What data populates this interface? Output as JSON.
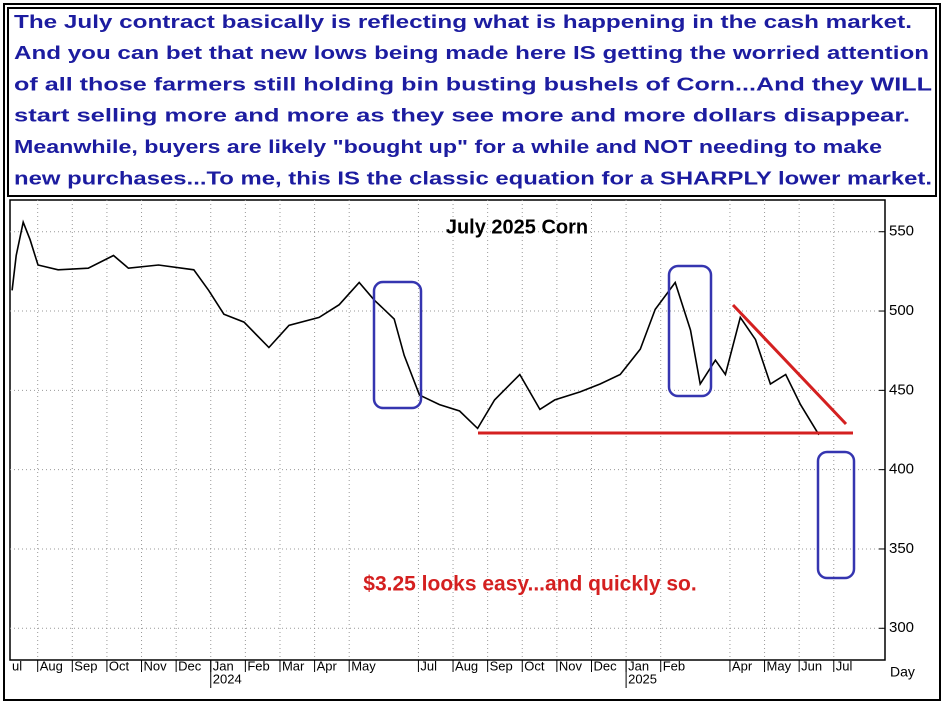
{
  "header": {
    "lines": [
      "The July contract basically is reflecting what is happening in the cash market.",
      "And you can bet that new lows being made here IS getting the worried attention",
      "of all those farmers still holding bin busting bushels of Corn...And they WILL",
      "start selling more and more as they see more and more dollars disappear.",
      "Meanwhile, buyers are likely \"bought up\" for a while and NOT needing to make",
      "new purchases...To me, this IS the classic equation for a SHARPLY lower market."
    ]
  },
  "chart_data": {
    "type": "line",
    "title": "July 2025 Corn",
    "annotation": "$3.25 looks easy...and quickly so.",
    "x_unit_label": "Day",
    "color": "#000000",
    "grid": true,
    "x": [
      0.26,
      0.38,
      0.58,
      0.78,
      1.01,
      1.59,
      2.46,
      3.19,
      3.62,
      4.49,
      5.51,
      5.94,
      6.38,
      6.96,
      7.68,
      8.26,
      9.13,
      9.71,
      10.29,
      10.72,
      11.3,
      11.59,
      12.03,
      12.61,
      13.19,
      13.71,
      14.2,
      14.93,
      15.51,
      15.94,
      16.67,
      17.25,
      17.83,
      18.41,
      18.84,
      19.42,
      19.86,
      20.14,
      20.58,
      20.87,
      21.3,
      21.74,
      22.17,
      22.61,
      23.04,
      23.57
    ],
    "values": [
      513,
      535,
      556,
      545,
      529,
      526,
      527,
      535,
      527,
      529,
      526,
      513,
      498,
      493,
      477,
      491,
      496,
      504,
      518,
      507,
      495,
      472,
      447,
      441,
      437,
      426,
      444,
      460,
      438,
      444,
      449,
      454,
      460,
      476,
      501,
      518,
      488,
      454,
      469,
      460,
      496,
      482,
      454,
      460,
      441,
      422
    ],
    "xlim": [
      0.2,
      25.48
    ],
    "xticks": [
      {
        "value": 0,
        "label": "ul"
      },
      {
        "value": 1,
        "label": "Aug"
      },
      {
        "value": 2,
        "label": "Sep"
      },
      {
        "value": 3,
        "label": "Oct"
      },
      {
        "value": 4,
        "label": "Nov"
      },
      {
        "value": 5,
        "label": "Dec"
      },
      {
        "value": 6,
        "label": "Jan"
      },
      {
        "value": 7,
        "label": "Feb"
      },
      {
        "value": 8,
        "label": "Mar"
      },
      {
        "value": 9,
        "label": "Apr"
      },
      {
        "value": 10,
        "label": "May"
      },
      {
        "value": 12,
        "label": "Jul"
      },
      {
        "value": 13,
        "label": "Aug"
      },
      {
        "value": 14,
        "label": "Sep"
      },
      {
        "value": 15,
        "label": "Oct"
      },
      {
        "value": 16,
        "label": "Nov"
      },
      {
        "value": 17,
        "label": "Dec"
      },
      {
        "value": 18,
        "label": "Jan"
      },
      {
        "value": 19,
        "label": "Feb"
      },
      {
        "value": 21,
        "label": "Apr"
      },
      {
        "value": 22,
        "label": "May"
      },
      {
        "value": 23,
        "label": "Jun"
      },
      {
        "value": 24,
        "label": "Jul"
      }
    ],
    "year_labels": [
      {
        "value": 6,
        "label": "2024"
      },
      {
        "value": 18,
        "label": "2025"
      }
    ],
    "ylim": [
      280,
      570
    ],
    "yticks": [
      300,
      350,
      400,
      450,
      500,
      550
    ]
  }
}
